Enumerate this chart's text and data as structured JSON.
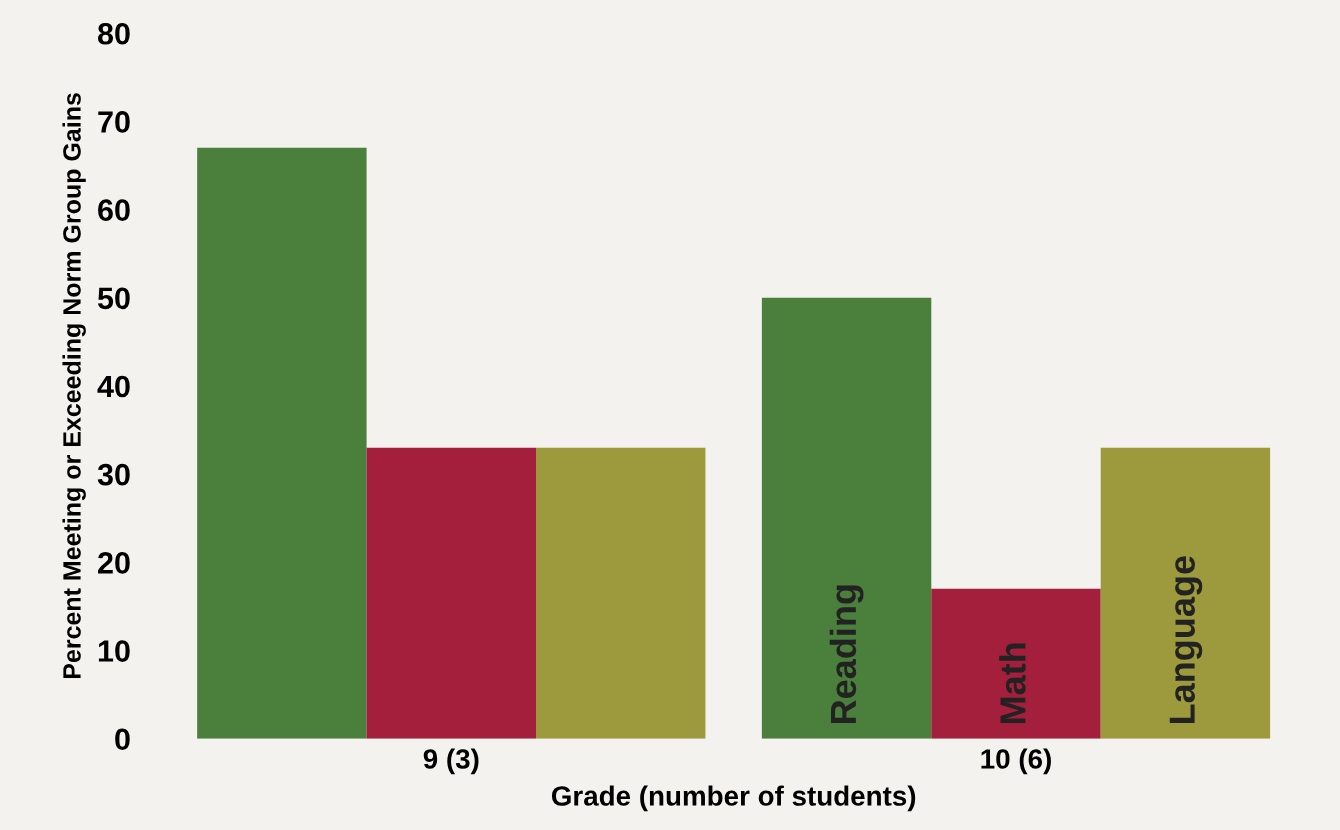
{
  "chart_data": {
    "type": "bar",
    "xlabel": "Grade (number of students)",
    "ylabel": "Percent Meeting or Exceeding Norm Group Gains",
    "categories": [
      "9 (3)",
      "10 (6)"
    ],
    "series": [
      {
        "name": "Reading",
        "color": "#4a7f3c",
        "values": [
          67,
          50
        ]
      },
      {
        "name": "Math",
        "color": "#a31f3b",
        "values": [
          33,
          17
        ]
      },
      {
        "name": "Language",
        "color": "#9c9a3c",
        "values": [
          33,
          33
        ]
      }
    ],
    "ylim": [
      0,
      80
    ],
    "yticks": [
      0,
      10,
      20,
      30,
      40,
      50,
      60,
      70,
      80
    ],
    "grid": false,
    "legend": false
  }
}
